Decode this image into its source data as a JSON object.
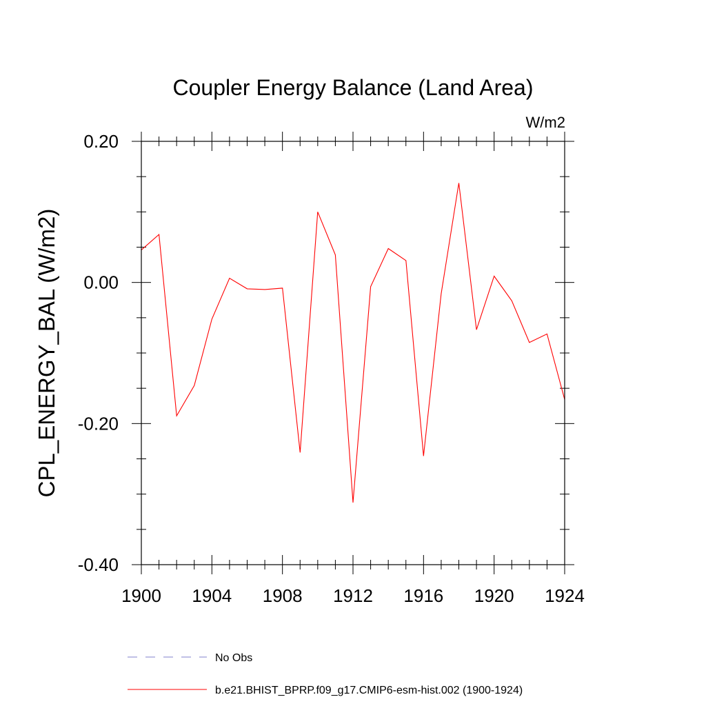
{
  "chart_data": {
    "type": "line",
    "title": "Coupler Energy Balance (Land Area)",
    "units_label": "W/m2",
    "ylabel": "CPL_ENERGY_BAL  (W/m2)",
    "xlabel": "",
    "xlim": [
      1900,
      1924
    ],
    "ylim": [
      -0.4,
      0.2
    ],
    "x_ticks": [
      1900,
      1904,
      1908,
      1912,
      1916,
      1920,
      1924
    ],
    "x_tick_labels": [
      "1900",
      "1904",
      "1908",
      "1912",
      "1916",
      "1920",
      "1924"
    ],
    "y_ticks": [
      -0.4,
      -0.2,
      0.0,
      0.2
    ],
    "y_tick_labels": [
      "-0.40",
      "-0.20",
      "0.00",
      "0.20"
    ],
    "grid": false,
    "series": [
      {
        "name": "b.e21.BHIST_BPRP.f09_g17.CMIP6-esm-hist.002 (1900-1924)",
        "color": "#ff0000",
        "style": "solid",
        "x": [
          1900,
          1901,
          1902,
          1903,
          1904,
          1905,
          1906,
          1907,
          1908,
          1909,
          1910,
          1911,
          1912,
          1913,
          1914,
          1915,
          1916,
          1917,
          1918,
          1919,
          1920,
          1921,
          1922,
          1923,
          1924
        ],
        "values": [
          0.046,
          0.068,
          -0.189,
          -0.146,
          -0.052,
          0.006,
          -0.009,
          -0.01,
          -0.008,
          -0.241,
          0.1,
          0.039,
          -0.312,
          -0.006,
          0.048,
          0.031,
          -0.246,
          -0.016,
          0.141,
          -0.067,
          0.009,
          -0.026,
          -0.085,
          -0.073,
          -0.166
        ]
      }
    ],
    "legend": {
      "placement": "bottom",
      "entries": [
        {
          "label": "No Obs",
          "color": "#7f7fcc",
          "style": "dashed"
        },
        {
          "label": "b.e21.BHIST_BPRP.f09_g17.CMIP6-esm-hist.002 (1900-1924)",
          "color": "#ff0000",
          "style": "solid"
        }
      ]
    }
  }
}
